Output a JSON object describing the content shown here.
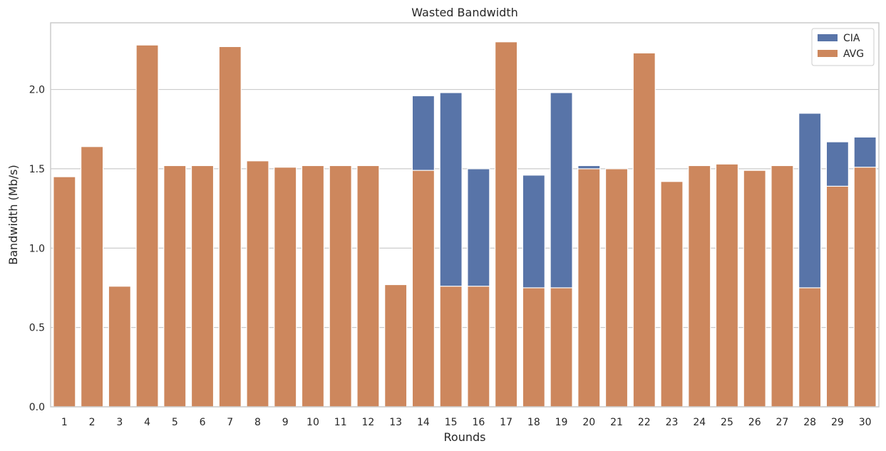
{
  "chart_data": {
    "type": "bar",
    "title": "Wasted Bandwidth",
    "xlabel": "Rounds",
    "ylabel": "Bandwidth (Mb/s)",
    "ylim": [
      0,
      2.42
    ],
    "yticks": [
      "0.0",
      "0.5",
      "1.0",
      "1.5",
      "2.0"
    ],
    "ytick_values": [
      0,
      0.5,
      1.0,
      1.5,
      2.0
    ],
    "categories": [
      "1",
      "2",
      "3",
      "4",
      "5",
      "6",
      "7",
      "8",
      "9",
      "10",
      "11",
      "12",
      "13",
      "14",
      "15",
      "16",
      "17",
      "18",
      "19",
      "20",
      "21",
      "22",
      "23",
      "24",
      "25",
      "26",
      "27",
      "28",
      "29",
      "30"
    ],
    "series": [
      {
        "name": "CIA",
        "color": "#5874a8",
        "values": [
          0,
          0,
          0,
          0,
          0,
          0,
          0,
          0,
          0,
          0,
          0,
          0,
          0,
          1.96,
          1.98,
          1.5,
          0,
          1.46,
          1.98,
          1.52,
          0,
          0,
          0,
          0,
          0,
          0,
          0,
          1.85,
          1.67,
          1.7
        ]
      },
      {
        "name": "AVG",
        "color": "#cd875d",
        "values": [
          1.45,
          1.64,
          0.76,
          2.28,
          1.52,
          1.52,
          2.27,
          1.55,
          1.51,
          1.52,
          1.52,
          1.52,
          0.77,
          1.49,
          0.76,
          0.76,
          2.3,
          0.75,
          0.75,
          1.5,
          1.5,
          2.23,
          1.42,
          1.52,
          1.53,
          1.49,
          1.52,
          0.75,
          1.39,
          1.51
        ]
      }
    ],
    "grid": true,
    "legend_position": "top-right"
  }
}
